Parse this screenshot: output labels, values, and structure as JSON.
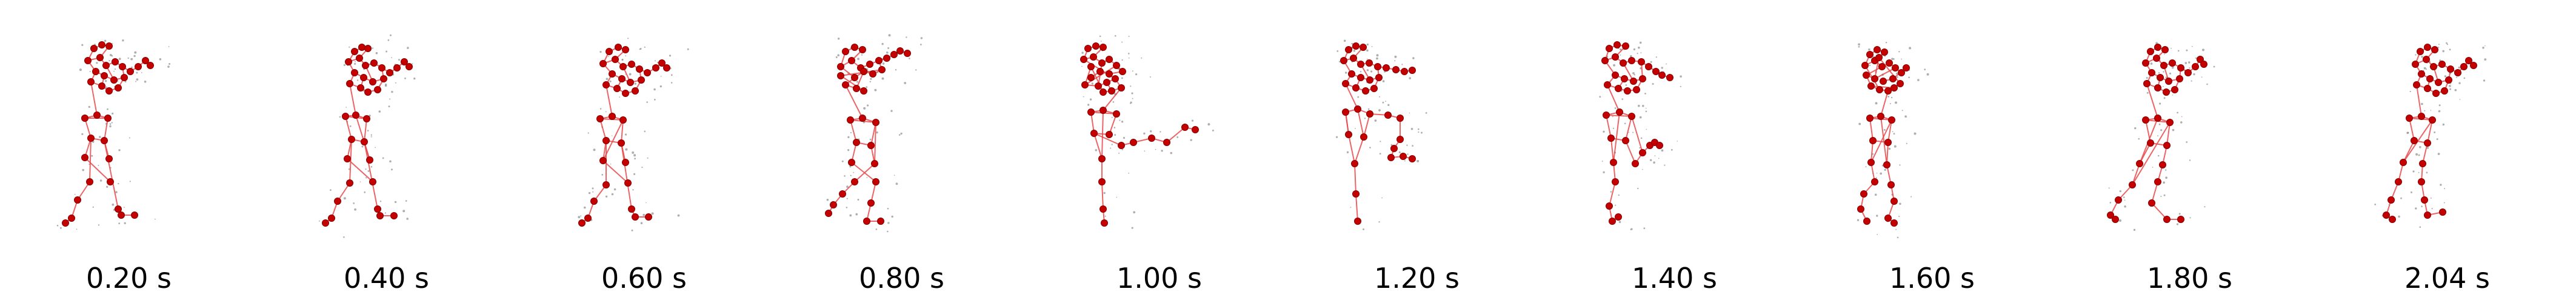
{
  "frames": [
    {
      "label": "0.20 s"
    },
    {
      "label": "0.40 s"
    },
    {
      "label": "0.60 s"
    },
    {
      "label": "0.80 s"
    },
    {
      "label": "1.00 s"
    },
    {
      "label": "1.20 s"
    },
    {
      "label": "1.40 s"
    },
    {
      "label": "1.60 s"
    },
    {
      "label": "1.80 s"
    },
    {
      "label": "2.04 s"
    }
  ],
  "colors": {
    "joint": "#c40000",
    "bone": "#e8494b",
    "trace": "#6d6d6d",
    "label_text": "#000000",
    "background": "#ffffff"
  }
}
